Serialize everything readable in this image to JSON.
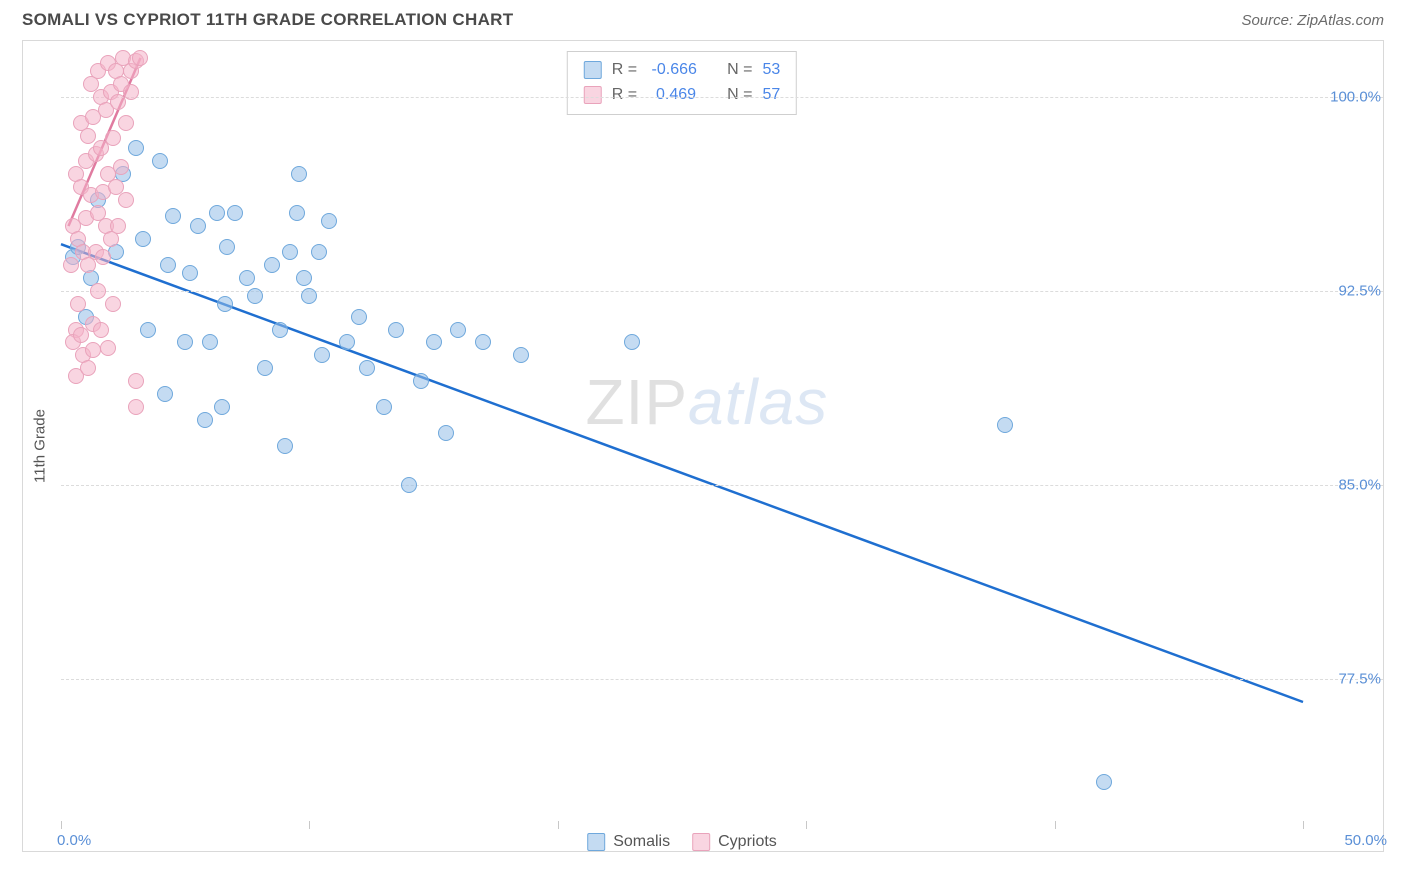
{
  "title": "SOMALI VS CYPRIOT 11TH GRADE CORRELATION CHART",
  "source_label": "Source: ZipAtlas.com",
  "ylabel": "11th Grade",
  "watermark_a": "ZIP",
  "watermark_b": "atlas",
  "chart": {
    "type": "scatter",
    "xlim": [
      0,
      50
    ],
    "ylim": [
      72,
      102
    ],
    "xticks": [
      0,
      10,
      20,
      30,
      40,
      50
    ],
    "yticks": [
      77.5,
      85.0,
      92.5,
      100.0
    ],
    "ytick_labels": [
      "77.5%",
      "85.0%",
      "92.5%",
      "100.0%"
    ],
    "xlim_labels": {
      "min": "0.0%",
      "max": "50.0%"
    },
    "grid_color": "#dcdcdc",
    "background_color": "#ffffff",
    "marker_size": 16,
    "series": [
      {
        "name": "Somalis",
        "color_fill": "rgba(148,190,231,0.55)",
        "color_stroke": "#6fa8dc",
        "r": -0.666,
        "n": 53,
        "trend": {
          "x1": 0,
          "y1": 94.3,
          "x2": 50,
          "y2": 76.6,
          "color": "#1f6fd0"
        },
        "points": [
          [
            0.5,
            93.8
          ],
          [
            0.7,
            94.2
          ],
          [
            1.2,
            93.0
          ],
          [
            1.0,
            91.5
          ],
          [
            1.5,
            96.0
          ],
          [
            2.2,
            94.0
          ],
          [
            2.5,
            97.0
          ],
          [
            3.0,
            98.0
          ],
          [
            3.3,
            94.5
          ],
          [
            3.5,
            91.0
          ],
          [
            4.0,
            97.5
          ],
          [
            4.3,
            93.5
          ],
          [
            4.5,
            95.4
          ],
          [
            5.0,
            90.5
          ],
          [
            5.2,
            93.2
          ],
          [
            5.5,
            95.0
          ],
          [
            5.8,
            87.5
          ],
          [
            6.0,
            90.5
          ],
          [
            6.3,
            95.5
          ],
          [
            6.6,
            92.0
          ],
          [
            6.7,
            94.2
          ],
          [
            6.5,
            88.0
          ],
          [
            7.0,
            95.5
          ],
          [
            7.5,
            93.0
          ],
          [
            7.8,
            92.3
          ],
          [
            8.2,
            89.5
          ],
          [
            8.5,
            93.5
          ],
          [
            8.8,
            91.0
          ],
          [
            9.0,
            86.5
          ],
          [
            9.2,
            94.0
          ],
          [
            9.5,
            95.5
          ],
          [
            9.6,
            97.0
          ],
          [
            9.8,
            93.0
          ],
          [
            10.0,
            92.3
          ],
          [
            10.5,
            90.0
          ],
          [
            10.4,
            94.0
          ],
          [
            10.8,
            95.2
          ],
          [
            11.5,
            90.5
          ],
          [
            12.0,
            91.5
          ],
          [
            12.3,
            89.5
          ],
          [
            13.0,
            88.0
          ],
          [
            13.5,
            91.0
          ],
          [
            14.0,
            85.0
          ],
          [
            14.5,
            89.0
          ],
          [
            15.0,
            90.5
          ],
          [
            15.5,
            87.0
          ],
          [
            16.0,
            91.0
          ],
          [
            17.0,
            90.5
          ],
          [
            18.5,
            90.0
          ],
          [
            23.0,
            90.5
          ],
          [
            38.0,
            87.3
          ],
          [
            42.0,
            73.5
          ],
          [
            4.2,
            88.5
          ]
        ]
      },
      {
        "name": "Cypriots",
        "color_fill": "rgba(244,178,200,0.55)",
        "color_stroke": "#e9a3bb",
        "r": 0.469,
        "n": 57,
        "trend": {
          "x1": 0.3,
          "y1": 95.0,
          "x2": 3.2,
          "y2": 101.5,
          "color": "#e07ba0"
        },
        "points": [
          [
            0.4,
            93.5
          ],
          [
            0.5,
            95.0
          ],
          [
            0.6,
            97.0
          ],
          [
            0.6,
            91.0
          ],
          [
            0.7,
            92.0
          ],
          [
            0.7,
            94.5
          ],
          [
            0.8,
            96.5
          ],
          [
            0.8,
            99.0
          ],
          [
            0.9,
            94.0
          ],
          [
            0.9,
            90.0
          ],
          [
            1.0,
            97.5
          ],
          [
            1.0,
            95.3
          ],
          [
            1.1,
            98.5
          ],
          [
            1.1,
            93.5
          ],
          [
            1.2,
            100.5
          ],
          [
            1.2,
            96.2
          ],
          [
            1.3,
            91.2
          ],
          [
            1.3,
            99.2
          ],
          [
            1.4,
            94.0
          ],
          [
            1.4,
            97.8
          ],
          [
            1.5,
            101.0
          ],
          [
            1.5,
            95.5
          ],
          [
            1.5,
            92.5
          ],
          [
            1.6,
            98.0
          ],
          [
            1.6,
            100.0
          ],
          [
            1.7,
            96.3
          ],
          [
            1.7,
            93.8
          ],
          [
            1.8,
            99.5
          ],
          [
            1.8,
            95.0
          ],
          [
            1.9,
            101.3
          ],
          [
            1.9,
            97.0
          ],
          [
            2.0,
            94.5
          ],
          [
            2.0,
            100.2
          ],
          [
            2.1,
            98.4
          ],
          [
            2.1,
            92.0
          ],
          [
            2.2,
            101.0
          ],
          [
            2.2,
            96.5
          ],
          [
            2.3,
            99.8
          ],
          [
            2.3,
            95.0
          ],
          [
            2.4,
            100.5
          ],
          [
            2.4,
            97.3
          ],
          [
            2.5,
            101.5
          ],
          [
            2.6,
            99.0
          ],
          [
            2.6,
            96.0
          ],
          [
            2.8,
            101.0
          ],
          [
            2.8,
            100.2
          ],
          [
            3.0,
            101.4
          ],
          [
            3.0,
            89.0
          ],
          [
            3.2,
            101.5
          ],
          [
            0.5,
            90.5
          ],
          [
            0.6,
            89.2
          ],
          [
            0.8,
            90.8
          ],
          [
            1.1,
            89.5
          ],
          [
            1.3,
            90.2
          ],
          [
            1.6,
            91.0
          ],
          [
            1.9,
            90.3
          ],
          [
            3.0,
            88.0
          ]
        ]
      }
    ],
    "legend_box": {
      "rows": [
        {
          "swatch": "b",
          "r_label": "R =",
          "r_val": " -0.666",
          "n_label": "N =",
          "n_val": "53"
        },
        {
          "swatch": "p",
          "r_label": "R =",
          "r_val": "  0.469",
          "n_label": "N =",
          "n_val": "57"
        }
      ]
    },
    "bottom_legend": [
      {
        "swatch": "b",
        "label": "Somalis"
      },
      {
        "swatch": "p",
        "label": "Cypriots"
      }
    ]
  }
}
